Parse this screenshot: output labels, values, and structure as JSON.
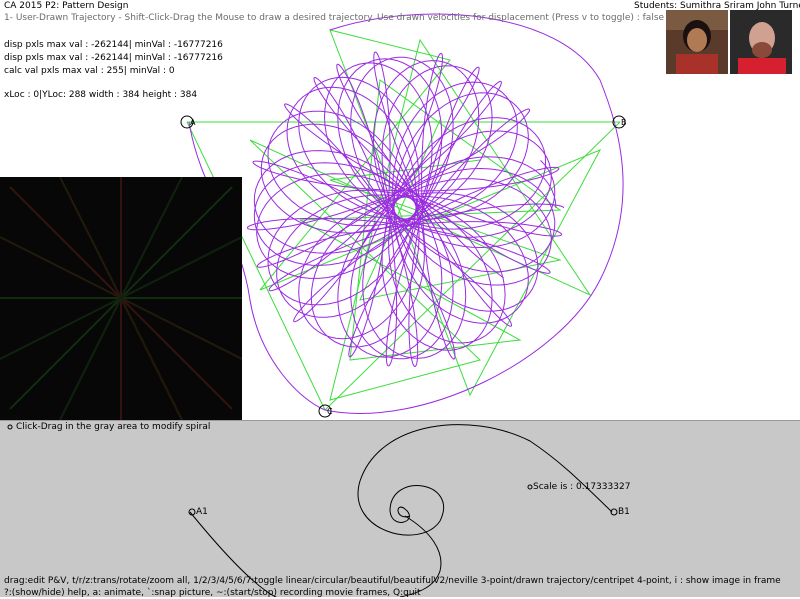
{
  "header": {
    "title": "CA 2015 P2: Pattern Design",
    "mode_line": "1- User-Drawn Trajectory - Shift-Click-Drag the Mouse to draw a desired trajectory.  Use drawn velocities for displacement (Press v to toggle) :  false",
    "students": "Students: Sumithra Sriram John Turner"
  },
  "debug": {
    "line1": "disp pxls max val : -262144| minVal : -16777216",
    "line2": "disp pxls max val : -262144| minVal : -16777216",
    "line3": "calc val pxls max val : 255| minVal : 0",
    "line4": "xLoc : 0|YLoc: 288 width : 384 height : 384"
  },
  "points": {
    "A": "A",
    "B": "B",
    "C": "C"
  },
  "spiral_panel": {
    "instruction": "Click-Drag in the gray area to modify spiral",
    "scale_label": "Scale is : 0.17333327",
    "A1": "A1",
    "B1": "B1"
  },
  "footer": {
    "help1": "drag:edit P&V, t/r/z:trans/rotate/zoom all, 1/2/3/4/5/6/7:toggle linear/circular/beautiful/beautifulV2/neville 3-point/drawn trajectory/centripet 4-point, i : show image in frame",
    "help2": "?:(show/hide) help, a: animate, `:snap picture, ~:(start/stop) recording movie frames, Q:quit"
  },
  "colors": {
    "trajectory": "#9a2be0",
    "star": "#3ddc3d",
    "panel_gray": "#c8c8c8"
  },
  "icons": [
    "point-a-marker-icon",
    "point-b-marker-icon",
    "point-c-marker-icon",
    "student-photo-1",
    "student-photo-2"
  ]
}
